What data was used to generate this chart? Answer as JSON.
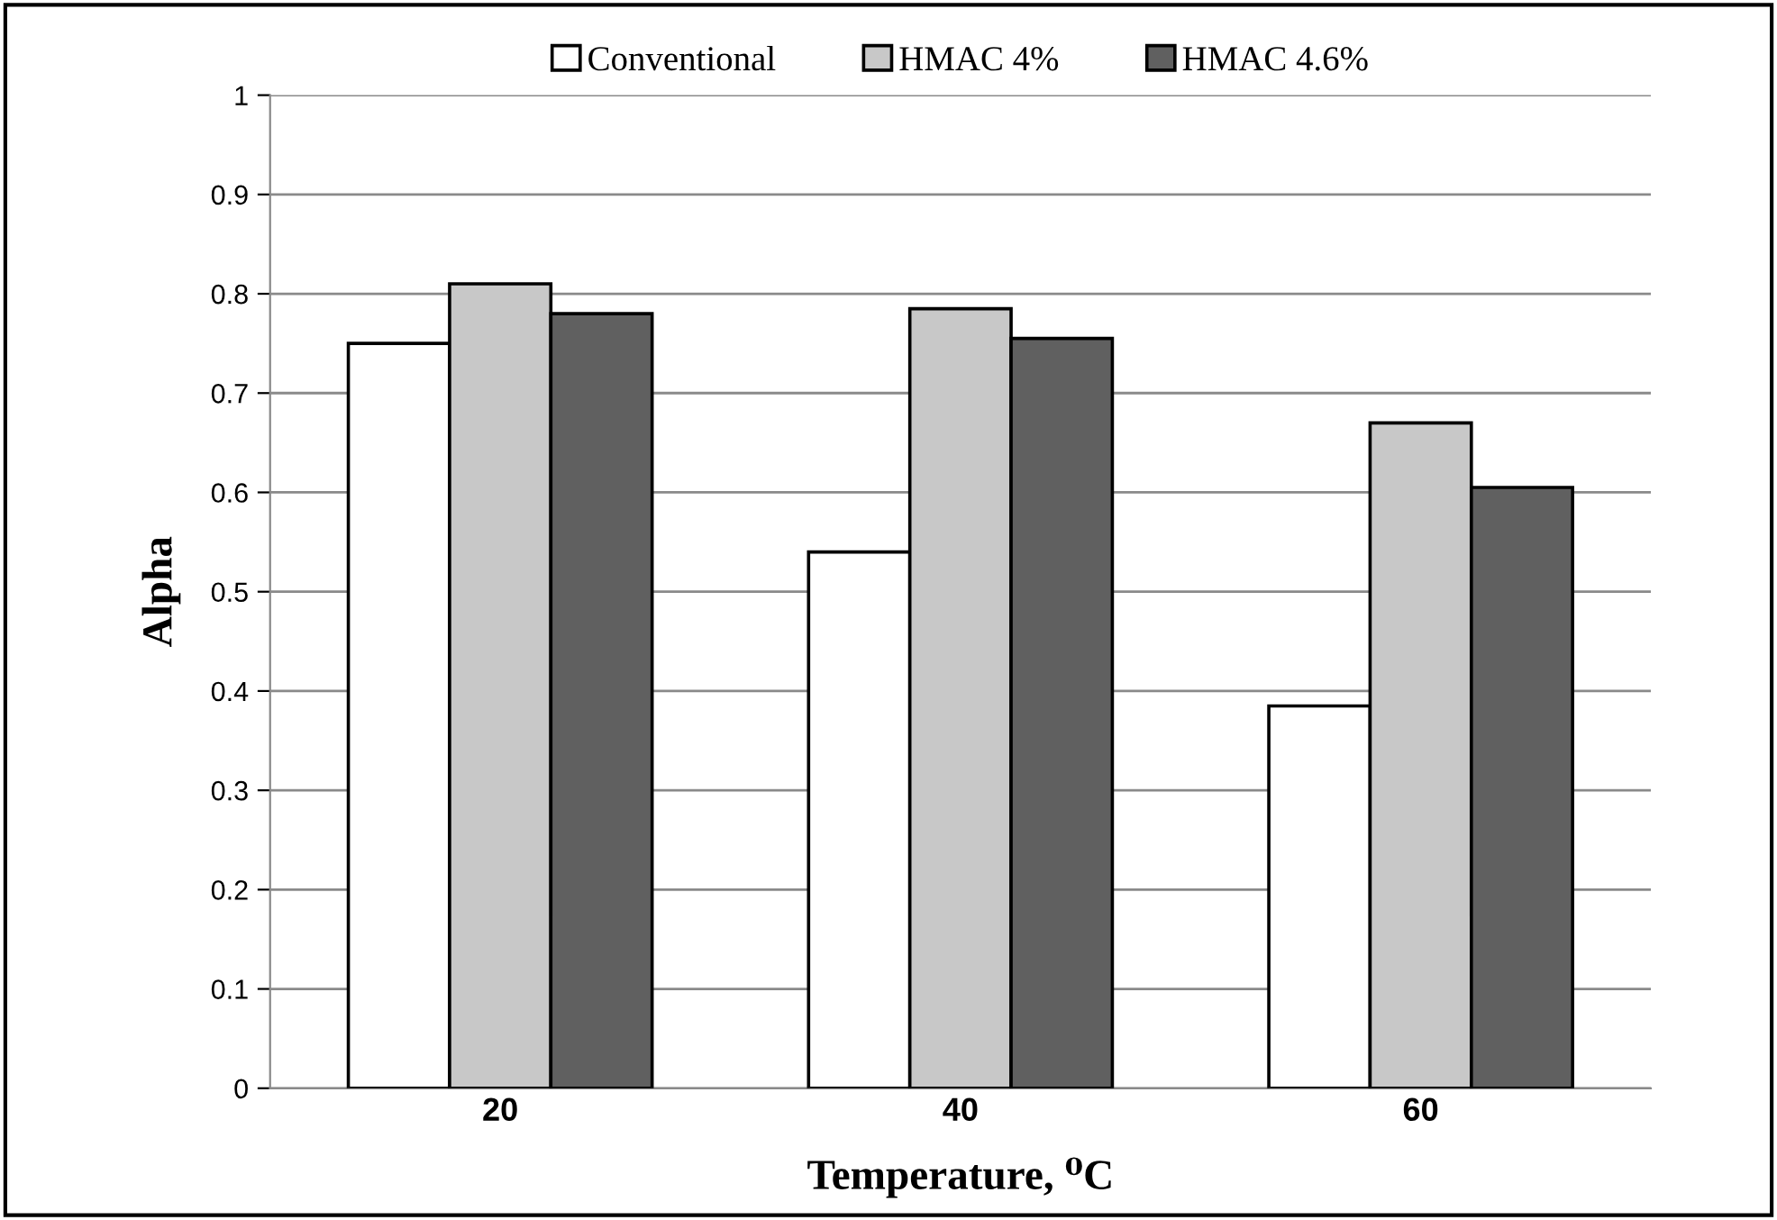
{
  "chart_data": {
    "type": "bar",
    "xlabel": "Temperature, ⁰C",
    "ylabel": "Alpha",
    "categories": [
      "20",
      "40",
      "60"
    ],
    "series": [
      {
        "name": "Conventional",
        "color": "#ffffff",
        "values": [
          0.75,
          0.54,
          0.385
        ]
      },
      {
        "name": "HMAC 4%",
        "color": "#c8c8c8",
        "values": [
          0.81,
          0.785,
          0.67
        ]
      },
      {
        "name": "HMAC 4.6%",
        "color": "#606060",
        "values": [
          0.78,
          0.755,
          0.605
        ]
      }
    ],
    "ylim": [
      0,
      1
    ],
    "yticks": [
      0,
      0.1,
      0.2,
      0.3,
      0.4,
      0.5,
      0.6,
      0.7,
      0.8,
      0.9,
      1
    ],
    "grid": "y",
    "legend": "top"
  }
}
